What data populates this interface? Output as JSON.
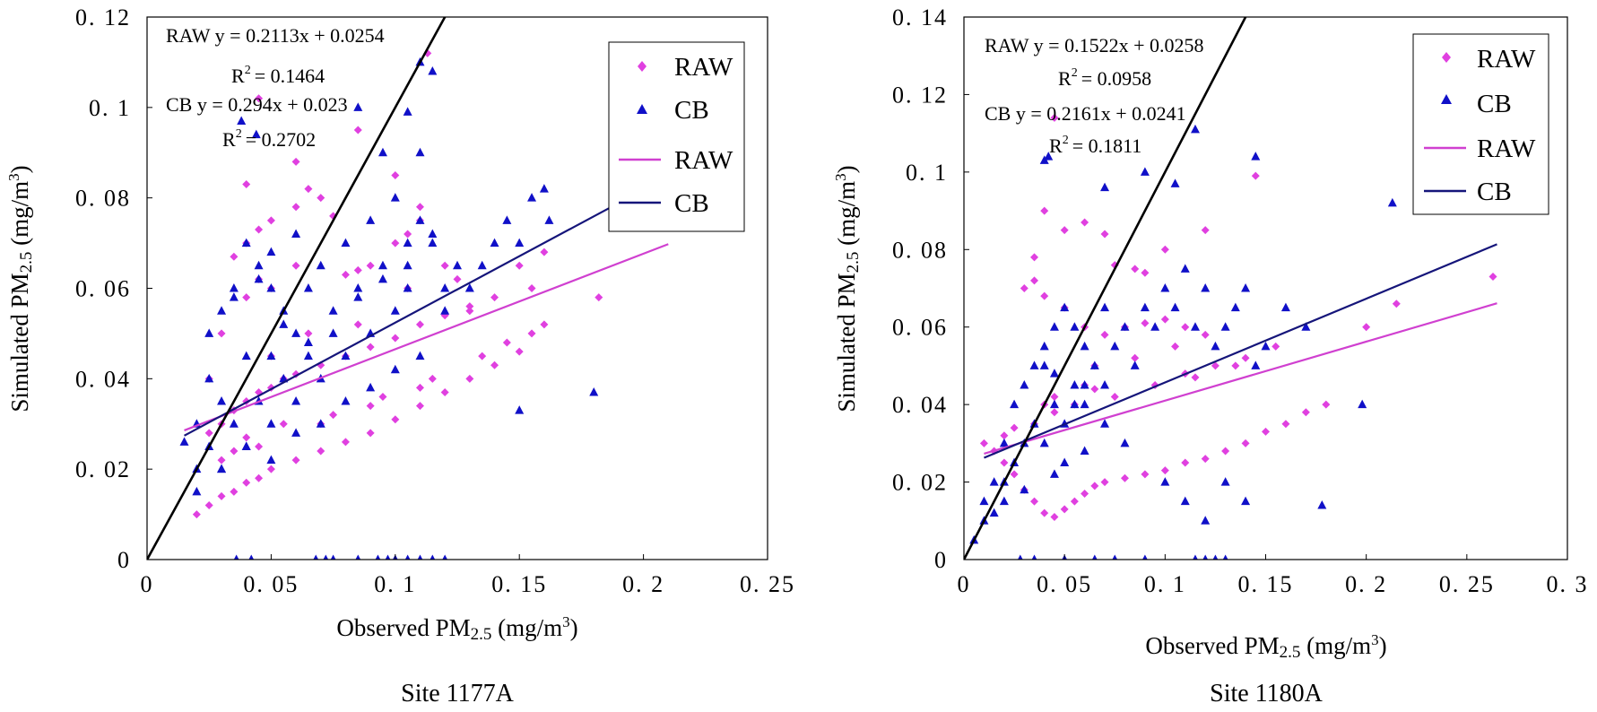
{
  "colors": {
    "raw": "#e040e0",
    "cb": "#1010c8",
    "raw_line": "#d040d0",
    "cb_line": "#15157a",
    "identity": "#000000"
  },
  "chart_data": [
    {
      "type": "scatter",
      "caption": "Site 1177A",
      "xlabel": "Observed PM2.5 (mg/m3)",
      "ylabel": "Simulated PM2.5 (mg/m3)",
      "xlim": [
        0,
        0.25
      ],
      "ylim": [
        0,
        0.12
      ],
      "xticks": [
        "0",
        "0. 05",
        "0. 1",
        "0. 15",
        "0. 2",
        "0. 25"
      ],
      "xtick_values": [
        0,
        0.05,
        0.1,
        0.15,
        0.2,
        0.25
      ],
      "yticks": [
        "0",
        "0. 02",
        "0. 04",
        "0. 06",
        "0. 08",
        "0. 1",
        "0. 12"
      ],
      "ytick_values": [
        0,
        0.02,
        0.04,
        0.06,
        0.08,
        0.1,
        0.12
      ],
      "grid": false,
      "legend_position": "top-right",
      "legend": [
        "RAW",
        "CB",
        "RAW",
        "CB"
      ],
      "annotations": {
        "raw_eq": "RAW y = 0.2113x + 0.0254",
        "raw_r2": "= 0.1464",
        "cb_eq": "CB y = 0.294x + 0.023",
        "cb_r2": "= 0.2702"
      },
      "fits": [
        {
          "name": "RAW",
          "slope": 0.2113,
          "intercept": 0.0254,
          "x_range": [
            0.015,
            0.21
          ]
        },
        {
          "name": "CB",
          "slope": 0.294,
          "intercept": 0.023,
          "x_range": [
            0.015,
            0.19
          ]
        },
        {
          "name": "1:1",
          "slope": 1,
          "intercept": 0,
          "x_range": [
            0,
            0.12
          ]
        }
      ],
      "series": [
        {
          "name": "RAW",
          "marker": "diamond",
          "x": [
            0.02,
            0.025,
            0.03,
            0.035,
            0.04,
            0.045,
            0.05,
            0.06,
            0.07,
            0.08,
            0.09,
            0.1,
            0.11,
            0.12,
            0.13,
            0.14,
            0.15,
            0.155,
            0.16,
            0.182,
            0.03,
            0.035,
            0.04,
            0.045,
            0.05,
            0.055,
            0.06,
            0.07,
            0.08,
            0.09,
            0.1,
            0.11,
            0.12,
            0.13,
            0.025,
            0.03,
            0.04,
            0.045,
            0.05,
            0.06,
            0.08,
            0.085,
            0.09,
            0.1,
            0.105,
            0.11,
            0.12,
            0.035,
            0.04,
            0.045,
            0.05,
            0.06,
            0.065,
            0.07,
            0.075,
            0.1,
            0.11,
            0.13,
            0.14,
            0.155,
            0.16,
            0.15,
            0.04,
            0.045,
            0.06,
            0.085,
            0.113,
            0.045,
            0.025,
            0.035,
            0.055,
            0.075,
            0.095,
            0.115,
            0.135,
            0.145,
            0.05,
            0.065,
            0.085,
            0.105,
            0.125,
            0.03,
            0.04,
            0.07,
            0.09,
            0.11
          ],
          "y": [
            0.01,
            0.012,
            0.014,
            0.015,
            0.017,
            0.018,
            0.02,
            0.022,
            0.024,
            0.026,
            0.028,
            0.031,
            0.034,
            0.037,
            0.04,
            0.043,
            0.046,
            0.05,
            0.052,
            0.058,
            0.03,
            0.033,
            0.035,
            0.037,
            0.038,
            0.04,
            0.041,
            0.043,
            0.045,
            0.047,
            0.049,
            0.052,
            0.054,
            0.056,
            0.04,
            0.05,
            0.058,
            0.062,
            0.06,
            0.065,
            0.063,
            0.064,
            0.065,
            0.07,
            0.072,
            0.075,
            0.065,
            0.067,
            0.07,
            0.073,
            0.075,
            0.078,
            0.082,
            0.08,
            0.076,
            0.085,
            0.078,
            0.055,
            0.058,
            0.06,
            0.068,
            0.065,
            0.083,
            0.102,
            0.088,
            0.095,
            0.112,
            0.025,
            0.028,
            0.024,
            0.03,
            0.032,
            0.036,
            0.04,
            0.045,
            0.048,
            0.045,
            0.05,
            0.052,
            0.06,
            0.062,
            0.022,
            0.027,
            0.03,
            0.034,
            0.038
          ]
        },
        {
          "name": "CB",
          "marker": "triangle",
          "x": [
            0.015,
            0.02,
            0.02,
            0.025,
            0.025,
            0.03,
            0.03,
            0.03,
            0.035,
            0.035,
            0.04,
            0.04,
            0.04,
            0.045,
            0.045,
            0.05,
            0.05,
            0.05,
            0.055,
            0.055,
            0.06,
            0.06,
            0.065,
            0.065,
            0.07,
            0.07,
            0.075,
            0.08,
            0.08,
            0.085,
            0.09,
            0.09,
            0.095,
            0.1,
            0.1,
            0.105,
            0.105,
            0.11,
            0.11,
            0.115,
            0.12,
            0.12,
            0.125,
            0.13,
            0.135,
            0.14,
            0.145,
            0.15,
            0.155,
            0.16,
            0.162,
            0.18,
            0.15,
            0.038,
            0.044,
            0.11,
            0.115,
            0.105,
            0.085,
            0.095,
            0.02,
            0.03,
            0.04,
            0.05,
            0.06,
            0.07,
            0.08,
            0.09,
            0.1,
            0.11,
            0.025,
            0.035,
            0.045,
            0.055,
            0.065,
            0.075,
            0.085,
            0.095,
            0.105,
            0.115,
            0.036,
            0.042,
            0.068,
            0.072,
            0.075,
            0.085,
            0.093,
            0.097,
            0.1,
            0.105,
            0.11,
            0.115,
            0.12,
            0.05,
            0.06
          ],
          "y": [
            0.026,
            0.02,
            0.03,
            0.025,
            0.04,
            0.02,
            0.035,
            0.055,
            0.03,
            0.06,
            0.025,
            0.045,
            0.07,
            0.035,
            0.065,
            0.03,
            0.045,
            0.06,
            0.04,
            0.055,
            0.035,
            0.05,
            0.045,
            0.06,
            0.04,
            0.065,
            0.05,
            0.045,
            0.07,
            0.06,
            0.05,
            0.075,
            0.065,
            0.055,
            0.08,
            0.07,
            0.06,
            0.075,
            0.09,
            0.07,
            0.06,
            0.055,
            0.065,
            0.06,
            0.065,
            0.07,
            0.075,
            0.07,
            0.08,
            0.082,
            0.075,
            0.037,
            0.033,
            0.097,
            0.094,
            0.11,
            0.108,
            0.099,
            0.1,
            0.09,
            0.015,
            0.02,
            0.025,
            0.022,
            0.028,
            0.03,
            0.035,
            0.038,
            0.042,
            0.045,
            0.05,
            0.058,
            0.062,
            0.052,
            0.048,
            0.055,
            0.058,
            0.062,
            0.065,
            0.072,
            0,
            0,
            0,
            0,
            0,
            0,
            0,
            0,
            0,
            0,
            0,
            0,
            0,
            0.068,
            0.072
          ]
        }
      ]
    },
    {
      "type": "scatter",
      "caption": "Site 1180A",
      "xlabel": "Observed PM2.5 (mg/m3)",
      "ylabel": "Simulated PM2.5 (mg/m3)",
      "xlim": [
        0,
        0.3
      ],
      "ylim": [
        0,
        0.14
      ],
      "xticks": [
        "0",
        "0. 05",
        "0. 1",
        "0. 15",
        "0. 2",
        "0. 25",
        "0. 3"
      ],
      "xtick_values": [
        0,
        0.05,
        0.1,
        0.15,
        0.2,
        0.25,
        0.3
      ],
      "yticks": [
        "0",
        "0. 02",
        "0. 04",
        "0. 06",
        "0. 08",
        "0. 1",
        "0. 12",
        "0. 14"
      ],
      "ytick_values": [
        0,
        0.02,
        0.04,
        0.06,
        0.08,
        0.1,
        0.12,
        0.14
      ],
      "grid": false,
      "legend_position": "top-right",
      "legend": [
        "RAW",
        "CB",
        "RAW",
        "CB"
      ],
      "annotations": {
        "raw_eq": "RAW y = 0.1522x + 0.0258",
        "raw_r2": "= 0.0958",
        "cb_eq": "CB y = 0.2161x + 0.0241",
        "cb_r2": "= 0.1811"
      },
      "fits": [
        {
          "name": "RAW",
          "slope": 0.1522,
          "intercept": 0.0258,
          "x_range": [
            0.01,
            0.265
          ]
        },
        {
          "name": "CB",
          "slope": 0.2161,
          "intercept": 0.0241,
          "x_range": [
            0.01,
            0.265
          ]
        },
        {
          "name": "1:1",
          "slope": 1,
          "intercept": 0,
          "x_range": [
            0,
            0.14
          ]
        }
      ],
      "series": [
        {
          "name": "RAW",
          "marker": "diamond",
          "x": [
            0.01,
            0.015,
            0.02,
            0.025,
            0.03,
            0.035,
            0.04,
            0.045,
            0.05,
            0.055,
            0.06,
            0.065,
            0.07,
            0.08,
            0.09,
            0.1,
            0.11,
            0.12,
            0.13,
            0.14,
            0.15,
            0.16,
            0.17,
            0.18,
            0.2,
            0.215,
            0.263,
            0.03,
            0.035,
            0.04,
            0.05,
            0.06,
            0.07,
            0.08,
            0.09,
            0.1,
            0.11,
            0.12,
            0.035,
            0.04,
            0.045,
            0.05,
            0.06,
            0.07,
            0.075,
            0.085,
            0.09,
            0.1,
            0.12,
            0.145,
            0.04,
            0.045,
            0.06,
            0.065,
            0.11,
            0.035,
            0.045,
            0.055,
            0.075,
            0.095,
            0.115,
            0.135,
            0.02,
            0.025,
            0.065,
            0.085,
            0.105,
            0.125,
            0.14,
            0.155
          ],
          "y": [
            0.03,
            0.028,
            0.025,
            0.022,
            0.018,
            0.015,
            0.012,
            0.011,
            0.013,
            0.015,
            0.017,
            0.019,
            0.02,
            0.021,
            0.022,
            0.023,
            0.025,
            0.026,
            0.028,
            0.03,
            0.033,
            0.035,
            0.038,
            0.04,
            0.06,
            0.066,
            0.073,
            0.07,
            0.072,
            0.068,
            0.065,
            0.06,
            0.058,
            0.06,
            0.061,
            0.062,
            0.06,
            0.058,
            0.078,
            0.09,
            0.114,
            0.085,
            0.087,
            0.084,
            0.076,
            0.075,
            0.074,
            0.08,
            0.085,
            0.099,
            0.04,
            0.042,
            0.045,
            0.044,
            0.048,
            0.035,
            0.038,
            0.04,
            0.042,
            0.045,
            0.047,
            0.05,
            0.032,
            0.034,
            0.05,
            0.052,
            0.055,
            0.05,
            0.052,
            0.055
          ],
          "_r": 0
        },
        {
          "name": "CB",
          "marker": "triangle",
          "x": [
            0.005,
            0.01,
            0.015,
            0.02,
            0.02,
            0.025,
            0.025,
            0.03,
            0.03,
            0.035,
            0.035,
            0.04,
            0.04,
            0.045,
            0.045,
            0.05,
            0.05,
            0.055,
            0.055,
            0.06,
            0.06,
            0.065,
            0.07,
            0.07,
            0.075,
            0.08,
            0.085,
            0.09,
            0.095,
            0.1,
            0.105,
            0.11,
            0.115,
            0.12,
            0.125,
            0.13,
            0.135,
            0.14,
            0.145,
            0.15,
            0.16,
            0.17,
            0.178,
            0.198,
            0.213,
            0.04,
            0.042,
            0.07,
            0.09,
            0.115,
            0.105,
            0.145,
            0.01,
            0.015,
            0.02,
            0.03,
            0.045,
            0.05,
            0.06,
            0.08,
            0.1,
            0.11,
            0.12,
            0.13,
            0.14,
            0.028,
            0.035,
            0.05,
            0.065,
            0.075,
            0.09,
            0.115,
            0.12,
            0.125,
            0.13,
            0.07,
            0.06,
            0.055,
            0.04,
            0.045
          ],
          "y": [
            0.005,
            0.01,
            0.02,
            0.015,
            0.03,
            0.025,
            0.04,
            0.03,
            0.045,
            0.035,
            0.05,
            0.03,
            0.055,
            0.04,
            0.06,
            0.035,
            0.065,
            0.04,
            0.06,
            0.045,
            0.055,
            0.05,
            0.045,
            0.065,
            0.055,
            0.06,
            0.05,
            0.065,
            0.06,
            0.07,
            0.065,
            0.075,
            0.06,
            0.07,
            0.055,
            0.06,
            0.065,
            0.07,
            0.05,
            0.055,
            0.065,
            0.06,
            0.014,
            0.04,
            0.092,
            0.103,
            0.104,
            0.096,
            0.1,
            0.111,
            0.097,
            0.104,
            0.015,
            0.012,
            0.02,
            0.018,
            0.022,
            0.025,
            0.028,
            0.03,
            0.02,
            0.015,
            0.01,
            0.02,
            0.015,
            0,
            0,
            0,
            0,
            0,
            0,
            0,
            0,
            0,
            0,
            0.035,
            0.04,
            0.045,
            0.05,
            0.048
          ]
        }
      ]
    }
  ]
}
